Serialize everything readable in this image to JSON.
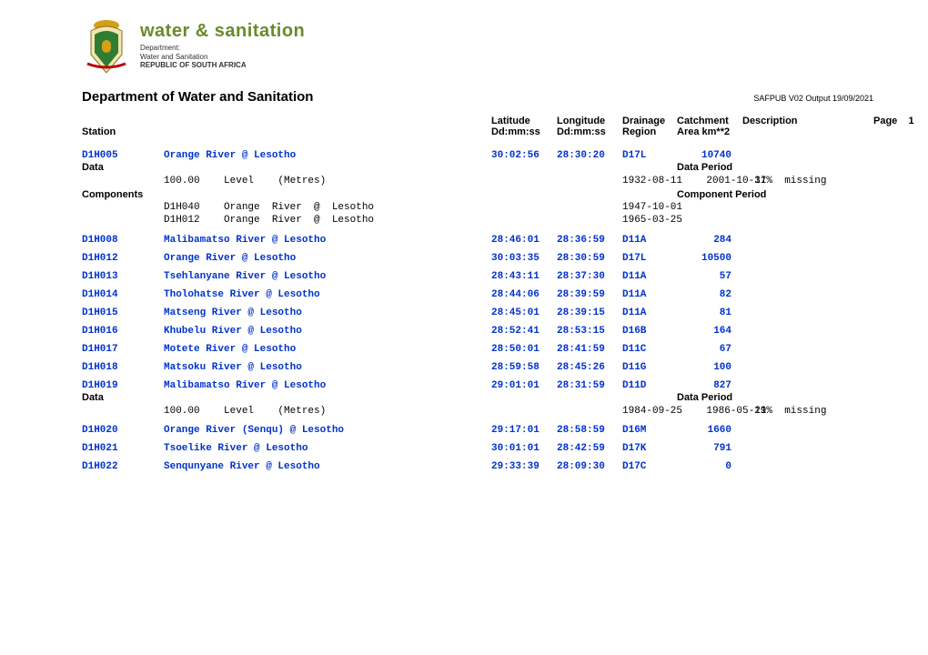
{
  "colors": {
    "link": "#0033cc",
    "brand_green": "#6a8a2a",
    "text": "#000000",
    "background": "#ffffff"
  },
  "brand": {
    "title": "water & sanitation",
    "line1": "Department:",
    "line2": "Water and Sanitation",
    "line3": "REPUBLIC OF SOUTH AFRICA"
  },
  "header": {
    "department": "Department of Water and Sanitation",
    "output_stamp": "SAFPUB V02 Output 19/09/2021",
    "page_label": "Page",
    "page_number": "1"
  },
  "columns": {
    "station": "Station",
    "latitude": "Latitude Dd:mm:ss",
    "longitude": "Longitude Dd:mm:ss",
    "region": "Drainage Region",
    "area": "Catchment Area  km**2",
    "description": "Description"
  },
  "section_labels": {
    "data": "Data",
    "data_period": "Data Period",
    "components": "Components",
    "component_period": "Component Period"
  },
  "stations": [
    {
      "id": "D1H005",
      "name": "Orange River @ Lesotho",
      "lat": "30:02:56",
      "lon": "28:30:20",
      "region": "D17L",
      "area": "10740",
      "data": [
        {
          "value": "100.00",
          "kind": "Level",
          "unit": "(Metres)",
          "from": "1932-08-11",
          "to": "2001-10-17",
          "note": "31%  missing"
        }
      ],
      "components": [
        {
          "id": "D1H040",
          "name": "Orange  River  @  Lesotho",
          "from": "1947-10-01"
        },
        {
          "id": "D1H012",
          "name": "Orange  River  @  Lesotho",
          "from": "1965-03-25"
        }
      ]
    },
    {
      "id": "D1H008",
      "name": "Malibamatso River @ Lesotho",
      "lat": "28:46:01",
      "lon": "28:36:59",
      "region": "D11A",
      "area": "284"
    },
    {
      "id": "D1H012",
      "name": "Orange River @ Lesotho",
      "lat": "30:03:35",
      "lon": "28:30:59",
      "region": "D17L",
      "area": "10500"
    },
    {
      "id": "D1H013",
      "name": "Tsehlanyane River @ Lesotho",
      "lat": "28:43:11",
      "lon": "28:37:30",
      "region": "D11A",
      "area": "57"
    },
    {
      "id": "D1H014",
      "name": "Tholohatse River @ Lesotho",
      "lat": "28:44:06",
      "lon": "28:39:59",
      "region": "D11A",
      "area": "82"
    },
    {
      "id": "D1H015",
      "name": "Matseng River @ Lesotho",
      "lat": "28:45:01",
      "lon": "28:39:15",
      "region": "D11A",
      "area": "81"
    },
    {
      "id": "D1H016",
      "name": "Khubelu River @ Lesotho",
      "lat": "28:52:41",
      "lon": "28:53:15",
      "region": "D16B",
      "area": "164"
    },
    {
      "id": "D1H017",
      "name": "Motete River @ Lesotho",
      "lat": "28:50:01",
      "lon": "28:41:59",
      "region": "D11C",
      "area": "67"
    },
    {
      "id": "D1H018",
      "name": "Matsoku River @ Lesotho",
      "lat": "28:59:58",
      "lon": "28:45:26",
      "region": "D11G",
      "area": "100"
    },
    {
      "id": "D1H019",
      "name": "Malibamatso River @ Lesotho",
      "lat": "29:01:01",
      "lon": "28:31:59",
      "region": "D11D",
      "area": "827",
      "data": [
        {
          "value": "100.00",
          "kind": "Level",
          "unit": "(Metres)",
          "from": "1984-09-25",
          "to": "1986-05-21",
          "note": "19%  missing"
        }
      ]
    },
    {
      "id": "D1H020",
      "name": "Orange River (Senqu) @ Lesotho",
      "lat": "29:17:01",
      "lon": "28:58:59",
      "region": "D16M",
      "area": "1660"
    },
    {
      "id": "D1H021",
      "name": "Tsoelike River @ Lesotho",
      "lat": "30:01:01",
      "lon": "28:42:59",
      "region": "D17K",
      "area": "791"
    },
    {
      "id": "D1H022",
      "name": "Senqunyane River @ Lesotho",
      "lat": "29:33:39",
      "lon": "28:09:30",
      "region": "D17C",
      "area": "0"
    }
  ]
}
